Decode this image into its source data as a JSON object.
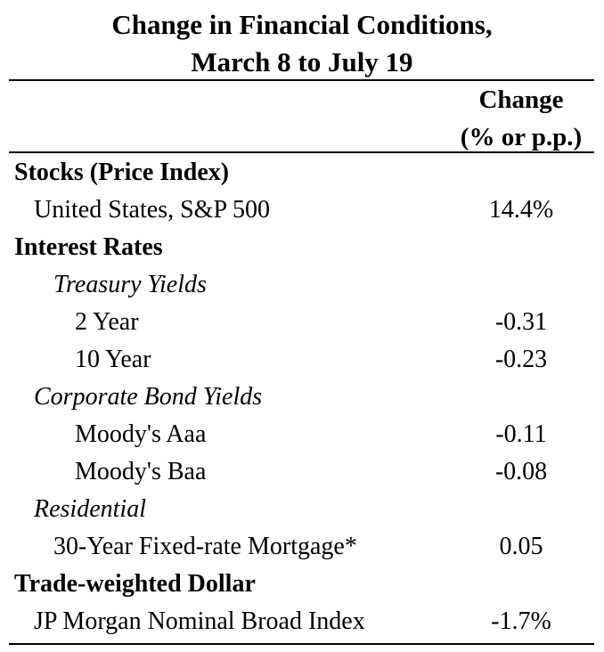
{
  "title": {
    "line1": "Change in Financial Conditions,",
    "line2": "March 8 to July 19"
  },
  "column_header": {
    "line1": "Change",
    "line2": "(% or p.p.)"
  },
  "rows": {
    "stocks_header": "Stocks (Price Index)",
    "sp500": {
      "label": "United States, S&P 500",
      "value": "14.4%"
    },
    "interest_header": "Interest Rates",
    "treasury_header": "Treasury Yields",
    "two_year": {
      "label": "2 Year",
      "value": "-0.31"
    },
    "ten_year": {
      "label": "10 Year",
      "value": "-0.23"
    },
    "corporate_header": "Corporate Bond Yields",
    "aaa": {
      "label": "Moody's Aaa",
      "value": "-0.11"
    },
    "baa": {
      "label": "Moody's Baa",
      "value": "-0.08"
    },
    "residential_header": "Residential",
    "mortgage": {
      "label": "30-Year Fixed-rate Mortgage*",
      "value": "0.05"
    },
    "dollar_header": "Trade-weighted Dollar",
    "jpm": {
      "label": "JP Morgan Nominal Broad Index",
      "value": "-1.7%"
    }
  }
}
